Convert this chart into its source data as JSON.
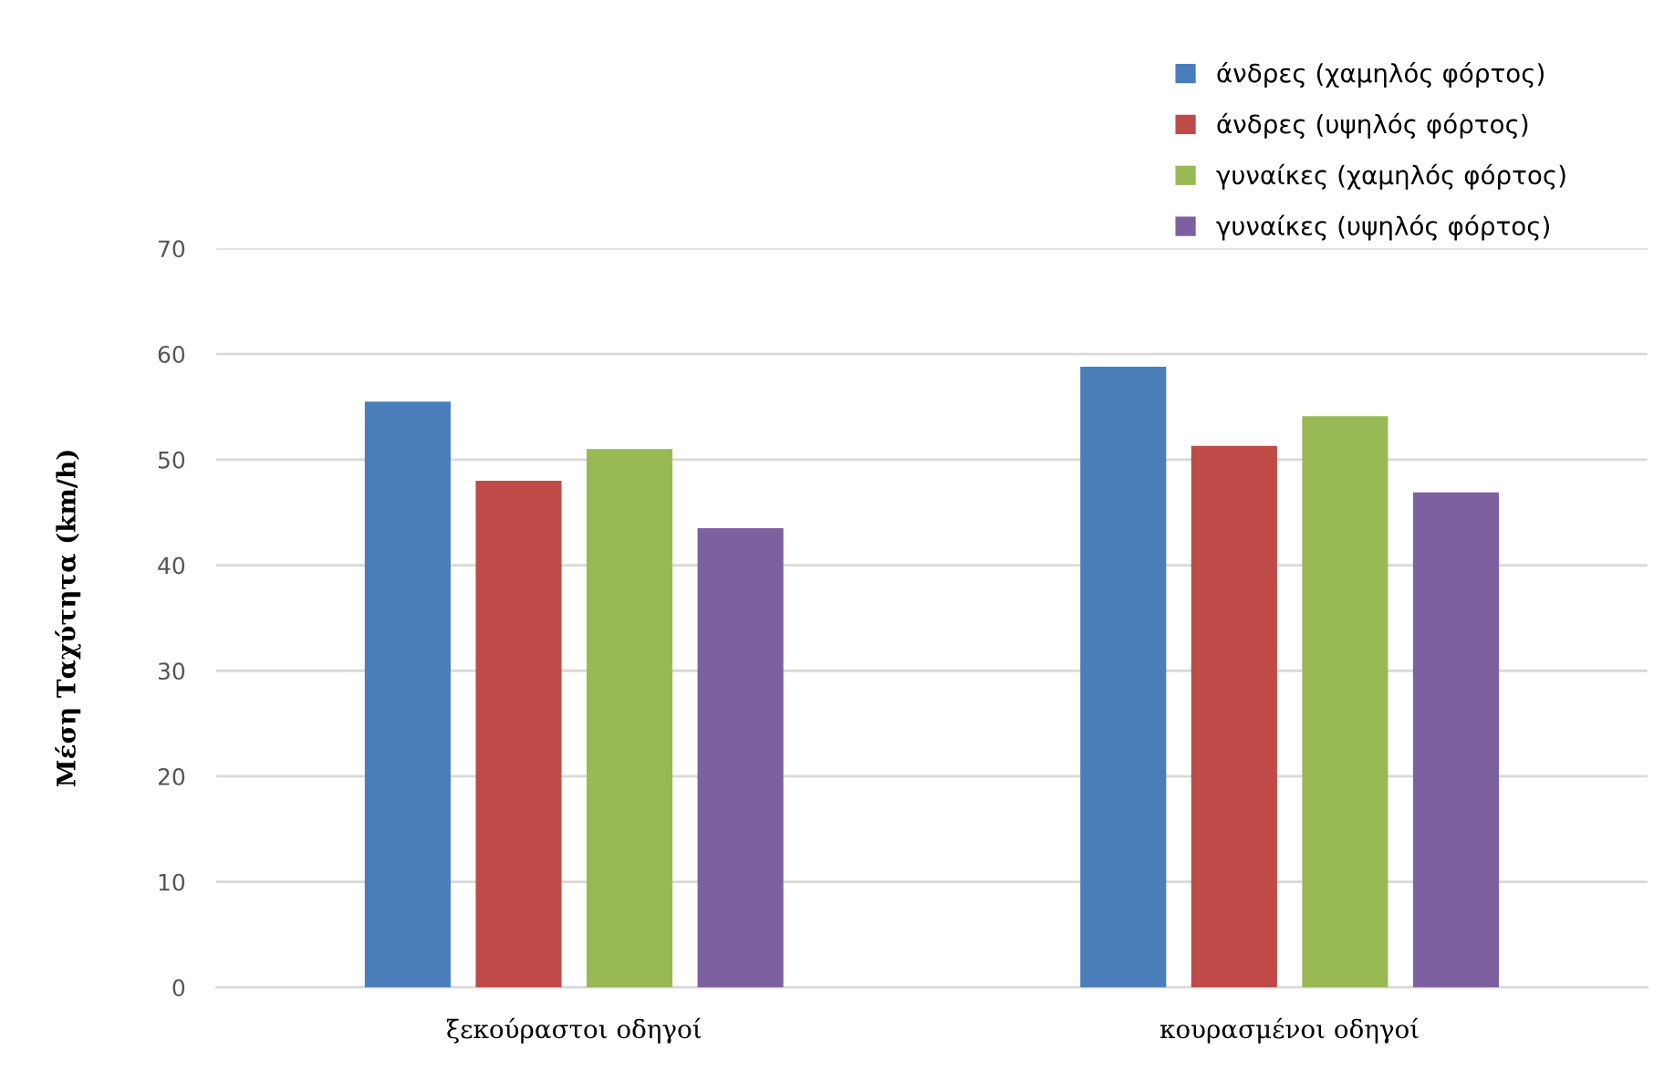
{
  "chart_data": {
    "type": "bar",
    "ylabel": "Μέση Ταχύτητα (km/h)",
    "categories": [
      "ξεκούραστοι οδηγοί",
      "κουρασμένοι οδηγοί"
    ],
    "series": [
      {
        "name": "άνδρες (χαμηλός φόρτος)",
        "color": "#4a7ebb",
        "values": [
          55.5,
          58.8
        ]
      },
      {
        "name": "άνδρες (υψηλός φόρτος)",
        "color": "#be4b48",
        "values": [
          48.0,
          51.3
        ]
      },
      {
        "name": "γυναίκες (χαμηλός φόρτος)",
        "color": "#98b954",
        "values": [
          51.0,
          54.1
        ]
      },
      {
        "name": "γυναίκες (υψηλός φόρτος)",
        "color": "#7d60a0",
        "values": [
          43.5,
          46.9
        ]
      }
    ],
    "ylim": [
      0,
      70
    ],
    "yticks": [
      0,
      10,
      20,
      30,
      40,
      50,
      60,
      70
    ],
    "grid": "y",
    "legend": "top right"
  }
}
